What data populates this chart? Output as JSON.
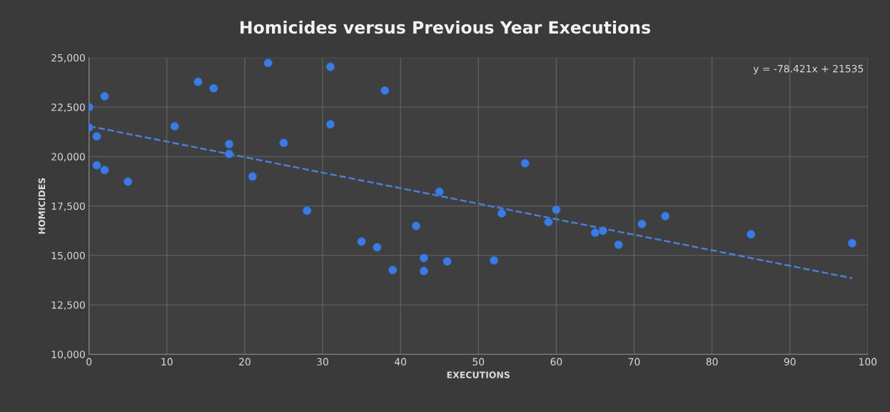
{
  "chart_data": {
    "type": "scatter",
    "title": "Homicides versus Previous Year Executions",
    "xlabel": "EXECUTIONS",
    "ylabel": "HOMICIDES",
    "series": [
      {
        "color": "#3d7be0",
        "marker": "circle",
        "x": [
          0,
          0,
          1,
          1,
          2,
          2,
          5,
          11,
          14,
          16,
          18,
          18,
          21,
          23,
          25,
          28,
          31,
          31,
          35,
          37,
          38,
          39,
          42,
          43,
          43,
          45,
          46,
          52,
          53,
          56,
          59,
          60,
          65,
          66,
          68,
          71,
          74,
          85,
          98
        ],
        "values": [
          22500,
          21470,
          21020,
          19560,
          23050,
          19320,
          18730,
          21530,
          23780,
          23450,
          20630,
          20130,
          18990,
          24730,
          20690,
          17260,
          24540,
          21630,
          15700,
          15410,
          23340,
          14260,
          16490,
          14870,
          14210,
          18220,
          14700,
          14750,
          17130,
          19660,
          16690,
          17310,
          16150,
          16250,
          15540,
          16590,
          16990,
          16070,
          15620
        ]
      },
      {
        "type": "line",
        "color": "#4a7fd8",
        "line_style": "dashed",
        "x": [
          0,
          98
        ],
        "values": [
          21540,
          13850
        ]
      }
    ],
    "annotations": [
      "y = -78.421x + 21535"
    ],
    "xlim": [
      0,
      100
    ],
    "xticks": [
      0,
      10,
      20,
      30,
      40,
      50,
      60,
      70,
      80,
      90,
      100
    ],
    "ylim": [
      10000,
      25000
    ],
    "yticks": [
      {
        "value": 10000,
        "label": "10,000"
      },
      {
        "value": 12500,
        "label": "12,500"
      },
      {
        "value": 15000,
        "label": "15,000"
      },
      {
        "value": 17500,
        "label": "17,500"
      },
      {
        "value": 20000,
        "label": "20,000"
      },
      {
        "value": 22500,
        "label": "22,500"
      },
      {
        "value": 25000,
        "label": "25,000"
      }
    ],
    "grid": true
  }
}
